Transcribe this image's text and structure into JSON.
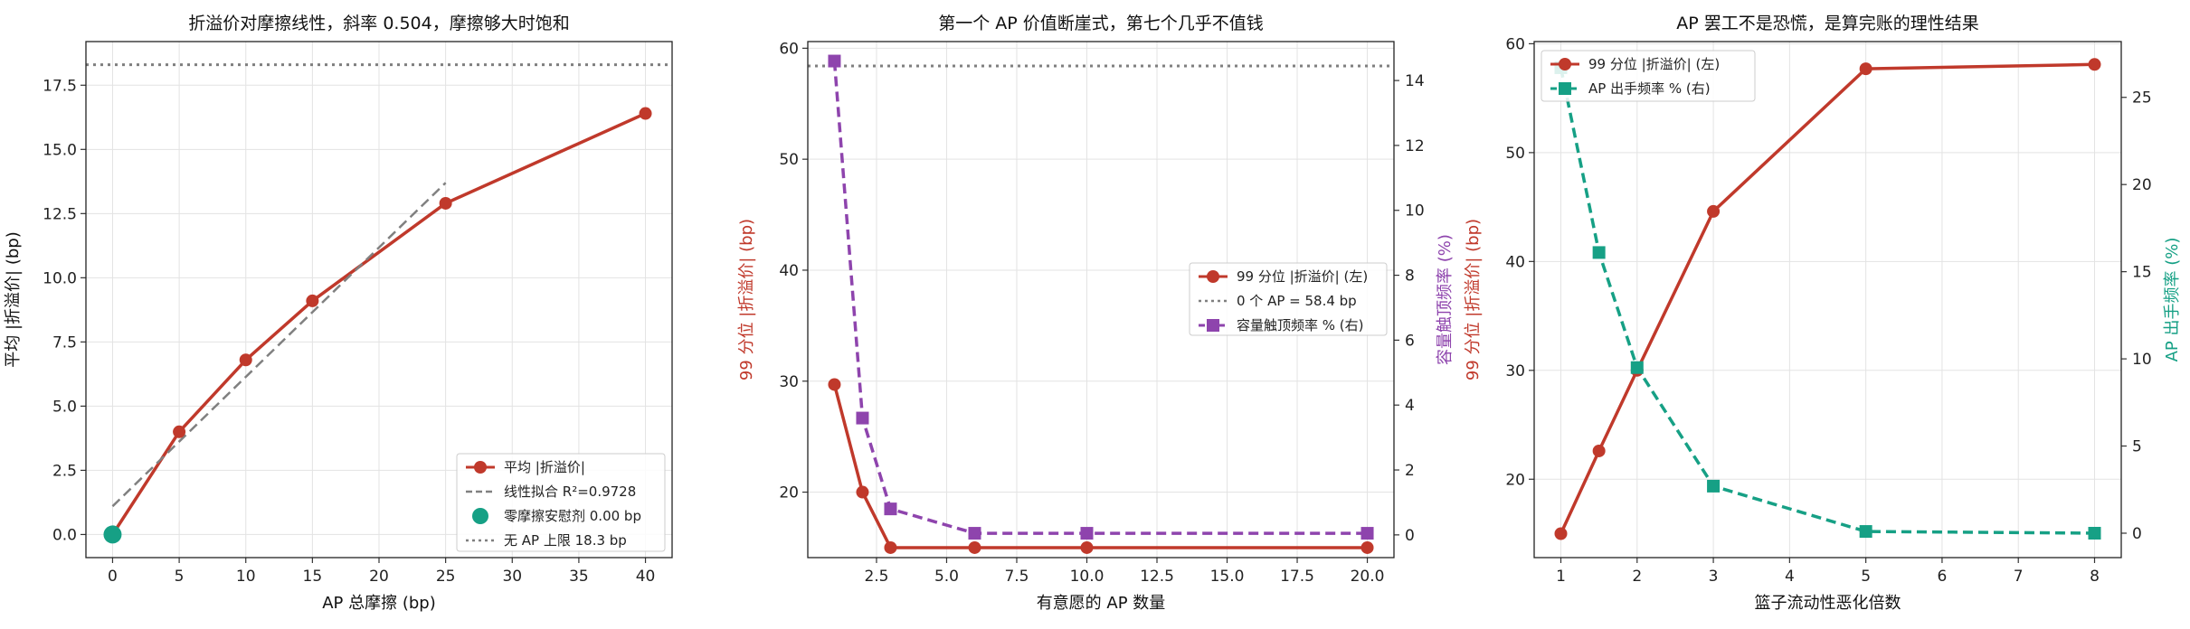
{
  "chart_data": [
    {
      "type": "line",
      "title": "折溢价对摩擦线性，斜率 0.504，摩擦够大时饱和",
      "xlabel": "AP 总摩擦 (bp)",
      "ylabel": "平均 |折溢价| (bp)",
      "xlim": [
        -2,
        42
      ],
      "ylim": [
        -0.9,
        19.2
      ],
      "xticks": [
        0,
        5,
        10,
        15,
        20,
        25,
        30,
        35,
        40
      ],
      "xtick_labels": [
        "0",
        "5",
        "10",
        "15",
        "20",
        "25",
        "30",
        "35",
        "40"
      ],
      "yticks": [
        0,
        2.5,
        5,
        7.5,
        10,
        12.5,
        15,
        17.5
      ],
      "ytick_labels": [
        "0.0",
        "2.5",
        "5.0",
        "7.5",
        "10.0",
        "12.5",
        "15.0",
        "17.5"
      ],
      "grid": true,
      "legend_position": "lower-right",
      "series": [
        {
          "name": "平均 |折溢价|",
          "x": [
            0,
            5,
            10,
            15,
            25,
            40
          ],
          "y": [
            0,
            4.0,
            6.8,
            9.1,
            12.9,
            16.4
          ],
          "color": "#c0392b",
          "style": "solid-circle"
        },
        {
          "name": "线性拟合 R²=0.9728",
          "x": [
            0,
            25
          ],
          "y": [
            1.1,
            13.7
          ],
          "color": "#808080",
          "style": "dashed"
        },
        {
          "name": "零摩擦安慰剂 0.00 bp",
          "x": [
            0
          ],
          "y": [
            0.0
          ],
          "color": "#16a085",
          "style": "big-dot"
        },
        {
          "name": "无 AP 上限 18.3 bp",
          "hline": 18.3,
          "color": "#7f7f7f",
          "style": "dotted"
        }
      ]
    },
    {
      "type": "line",
      "title": "第一个 AP 价值断崖式，第七个几乎不值钱",
      "xlabel": "有意愿的 AP 数量",
      "ylabel": "99 分位 |折溢价| (bp)",
      "ylabel_right": "容量触顶频率 (%)",
      "xlim": [
        0.05,
        20.95
      ],
      "ylim": [
        14.1,
        60.6
      ],
      "ylim_right": [
        -0.7,
        15.2
      ],
      "xticks": [
        2.5,
        5,
        7.5,
        10,
        12.5,
        15,
        17.5,
        20
      ],
      "xtick_labels": [
        "2.5",
        "5.0",
        "7.5",
        "10.0",
        "12.5",
        "15.0",
        "17.5",
        "20.0"
      ],
      "yticks": [
        20,
        30,
        40,
        50,
        60
      ],
      "ytick_labels": [
        "20",
        "30",
        "40",
        "50",
        "60"
      ],
      "yticks_right": [
        0,
        2,
        4,
        6,
        8,
        10,
        12,
        14
      ],
      "ytick_labels_right": [
        "0",
        "2",
        "4",
        "6",
        "8",
        "10",
        "12",
        "14"
      ],
      "grid": true,
      "legend_position": "center-right",
      "series": [
        {
          "name": "99 分位 |折溢价| (左)",
          "x": [
            1,
            2,
            3,
            6,
            10,
            20
          ],
          "y": [
            29.7,
            20.0,
            15.0,
            15.0,
            15.0,
            15.0
          ],
          "color": "#c0392b",
          "style": "solid-circle",
          "axis": "left"
        },
        {
          "name": "0 个 AP = 58.4 bp",
          "hline": 58.4,
          "color": "#7f7f7f",
          "style": "dotted",
          "axis": "left"
        },
        {
          "name": "容量触顶频率 % (右)",
          "x": [
            1,
            2,
            3,
            6,
            10,
            20
          ],
          "y": [
            14.6,
            3.6,
            0.8,
            0.05,
            0.05,
            0.05
          ],
          "color": "#8e44ad",
          "style": "dashed-square",
          "axis": "right"
        }
      ]
    },
    {
      "type": "line",
      "title": "AP 罢工不是恐慌，是算完账的理性结果",
      "xlabel": "篮子流动性恶化倍数",
      "ylabel": "99 分位 |折溢价| (bp)",
      "ylabel_right": "AP 出手频率 (%)",
      "xlim": [
        0.65,
        8.35
      ],
      "ylim": [
        12.8,
        60.2
      ],
      "ylim_right": [
        -1.4,
        28.2
      ],
      "xticks": [
        1,
        2,
        3,
        4,
        5,
        6,
        7,
        8
      ],
      "xtick_labels": [
        "1",
        "2",
        "3",
        "4",
        "5",
        "6",
        "7",
        "8"
      ],
      "yticks": [
        20,
        30,
        40,
        50,
        60
      ],
      "ytick_labels": [
        "20",
        "30",
        "40",
        "50",
        "60"
      ],
      "yticks_right": [
        0,
        5,
        10,
        15,
        20,
        25
      ],
      "ytick_labels_right": [
        "0",
        "5",
        "10",
        "15",
        "20",
        "25"
      ],
      "grid": true,
      "legend_position": "top-left",
      "series": [
        {
          "name": "99 分位 |折溢价| (左)",
          "x": [
            1,
            1.5,
            2,
            3,
            5,
            8
          ],
          "y": [
            15.0,
            22.6,
            30.0,
            44.6,
            57.7,
            58.1
          ],
          "color": "#c0392b",
          "style": "solid-circle",
          "axis": "left"
        },
        {
          "name": "AP 出手频率 % (右)",
          "x": [
            1,
            1.5,
            2,
            3,
            5,
            8
          ],
          "y": [
            26.7,
            16.1,
            9.5,
            2.7,
            0.1,
            0.0
          ],
          "color": "#16a085",
          "style": "dashed-square",
          "axis": "right"
        }
      ]
    }
  ]
}
